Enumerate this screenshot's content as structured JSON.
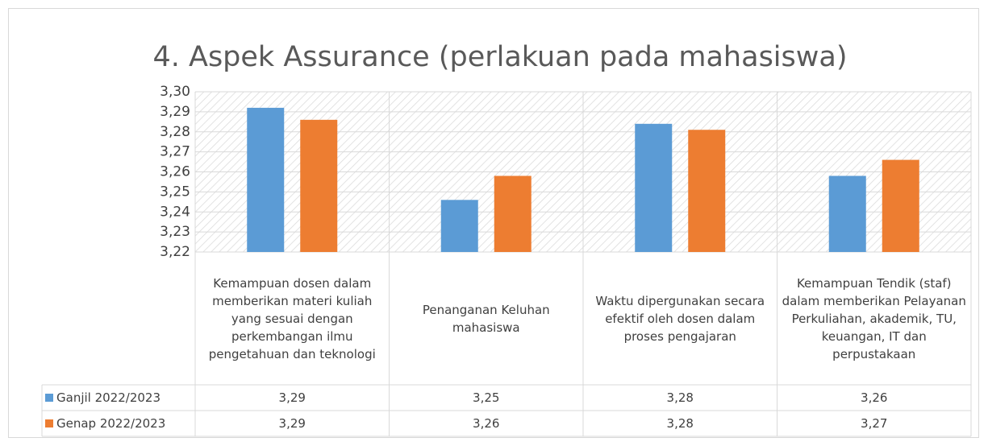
{
  "chart_data": {
    "type": "bar",
    "title": "4. Aspek Assurance (perlakuan pada mahasiswa)",
    "categories": [
      "Kemampuan dosen dalam memberikan materi kuliah yang sesuai dengan perkembangan ilmu pengetahuan dan teknologi",
      "Penanganan Keluhan mahasiswa",
      "Waktu dipergunakan secara efektif oleh dosen dalam proses pengajaran",
      "Kemampuan Tendik (staf) dalam memberikan Pelayanan Perkuliahan, akademik, TU, keuangan, IT dan perpustakaan"
    ],
    "series": [
      {
        "name": "Ganjil 2022/2023",
        "color": "#5b9bd5",
        "values": [
          3.292,
          3.246,
          3.284,
          3.258
        ],
        "value_labels": [
          "3,29",
          "3,25",
          "3,28",
          "3,26"
        ]
      },
      {
        "name": "Genap 2022/2023",
        "color": "#ed7d31",
        "values": [
          3.286,
          3.258,
          3.281,
          3.266
        ],
        "value_labels": [
          "3,29",
          "3,26",
          "3,28",
          "3,27"
        ]
      }
    ],
    "ylim": [
      3.22,
      3.3
    ],
    "yticks": [
      {
        "value": 3.22,
        "label": "3,22"
      },
      {
        "value": 3.23,
        "label": "3,23"
      },
      {
        "value": 3.24,
        "label": "3,24"
      },
      {
        "value": 3.25,
        "label": "3,25"
      },
      {
        "value": 3.26,
        "label": "3,26"
      },
      {
        "value": 3.27,
        "label": "3,27"
      },
      {
        "value": 3.28,
        "label": "3,28"
      },
      {
        "value": 3.29,
        "label": "3,29"
      },
      {
        "value": 3.3,
        "label": "3,30"
      }
    ],
    "grid": true,
    "legend": "table"
  }
}
